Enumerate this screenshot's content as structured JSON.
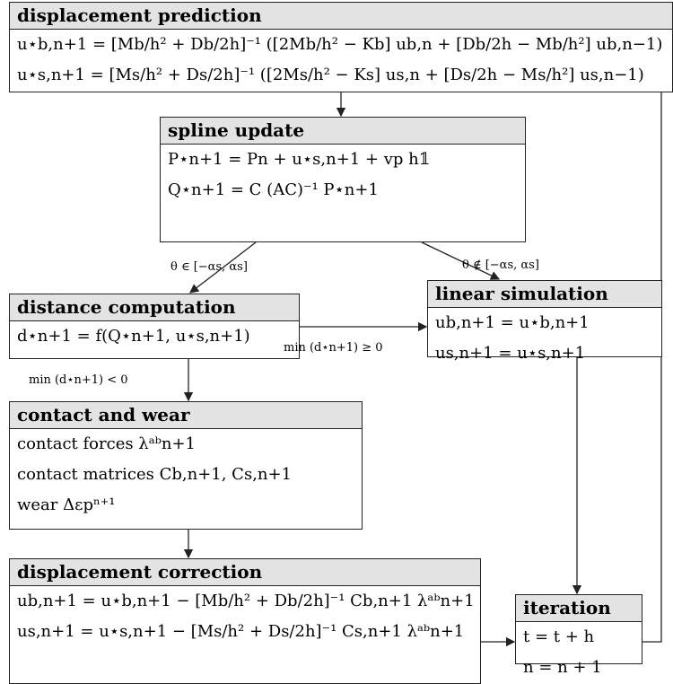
{
  "nodes": [
    {
      "title": "displacement prediction",
      "lines": [
        "u⋆b,n+1 = [Mb/h² + Db/2h]⁻¹ ([2Mb/h² − Kb] ub,n + [Db/2h − Mb/h²] ub,n−1)",
        "u⋆s,n+1 = [Ms/h² + Ds/2h]⁻¹ ([2Ms/h² − Ks] us,n + [Ds/2h − Ms/h²] us,n−1)"
      ]
    },
    {
      "title": "spline update",
      "lines": [
        "P⋆n+1 = Pn + u⋆s,n+1 + vp h𝟙",
        "Q⋆n+1 = C (AC)⁻¹ P⋆n+1"
      ]
    },
    {
      "title": "distance computation",
      "lines": [
        "d⋆n+1 = f(Q⋆n+1, u⋆s,n+1)"
      ]
    },
    {
      "title": "linear simulation",
      "lines": [
        "ub,n+1 = u⋆b,n+1",
        "us,n+1 = u⋆s,n+1"
      ]
    },
    {
      "title": "contact and wear",
      "lines": [
        "contact forces λᵃᵇn+1",
        "contact matrices Cb,n+1, Cs,n+1",
        "wear Δεpⁿ⁺¹"
      ]
    },
    {
      "title": "displacement correction",
      "lines": [
        "ub,n+1 = u⋆b,n+1 − [Mb/h² + Db/2h]⁻¹ Cb,n+1 λᵃᵇn+1",
        "us,n+1 = u⋆s,n+1 − [Ms/h² + Ds/2h]⁻¹ Cs,n+1 λᵃᵇn+1"
      ]
    },
    {
      "title": "iteration",
      "lines": [
        "t = t + h",
        "n = n + 1"
      ]
    }
  ],
  "edges": [
    {
      "label": "θ ∈ [−αs, αs]"
    },
    {
      "label": "θ ∉ [−αs, αs]"
    },
    {
      "label": "min (d⋆n+1) ≥ 0"
    },
    {
      "label": "min (d⋆n+1) < 0"
    }
  ]
}
